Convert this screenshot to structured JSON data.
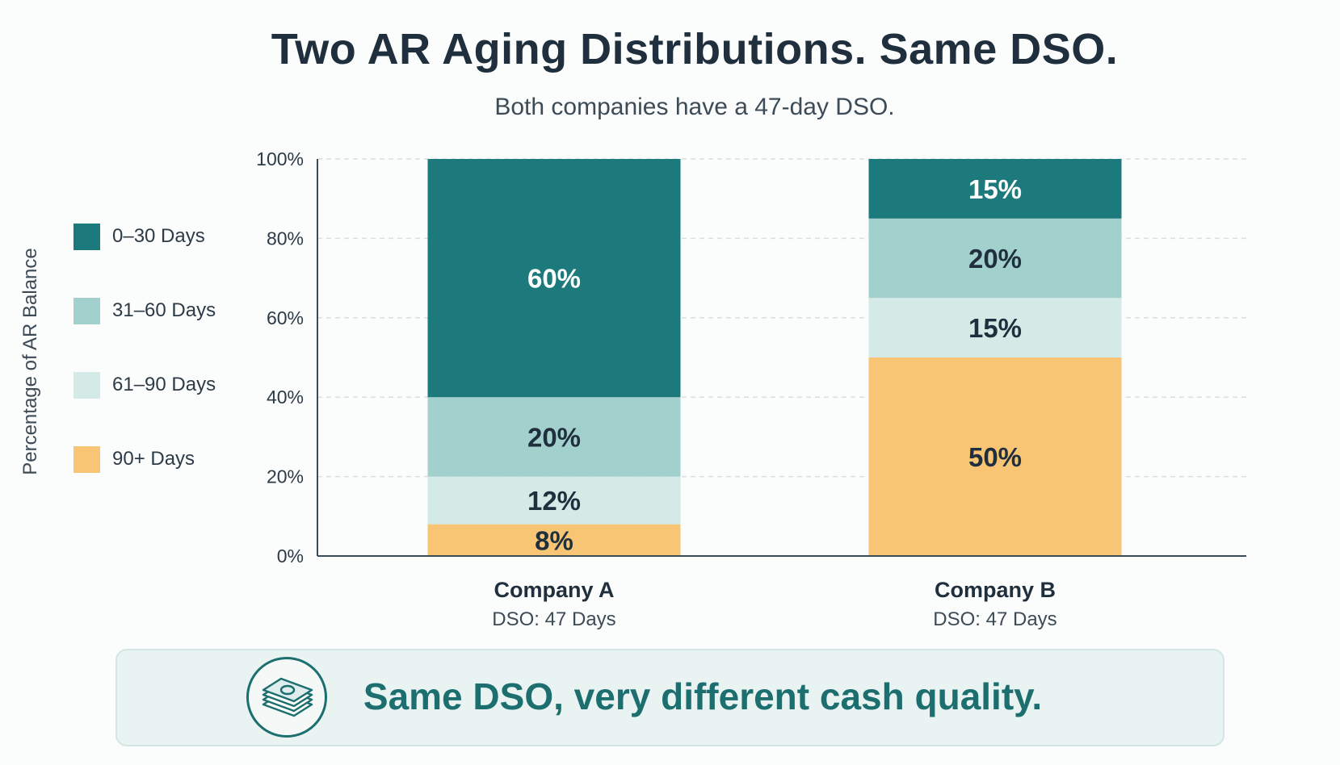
{
  "title": "Two AR Aging Distributions. Same DSO.",
  "subtitle": "Both companies have a 47-day DSO.",
  "callout": {
    "text": "Same DSO, very different cash quality.",
    "icon": "money-stack-icon"
  },
  "colors": {
    "0-30": "#1d7a7c",
    "31-60": "#a2d1cd",
    "61-90": "#d3eae6",
    "90+": "#f7c574"
  },
  "chart_data": {
    "type": "bar",
    "stacked": true,
    "ylabel": "Percentage of AR Balance",
    "ylim": [
      0,
      100
    ],
    "yticks": [
      "0%",
      "20%",
      "40%",
      "60%",
      "80%",
      "100%"
    ],
    "grid": true,
    "legend_position": "left",
    "categories": [
      "Company A",
      "Company B"
    ],
    "category_sublabels": [
      "DSO: 47 Days",
      "DSO: 47 Days"
    ],
    "series": [
      {
        "name": "90+ Days",
        "key": "90+",
        "values": [
          8,
          50
        ],
        "labels": [
          "8%",
          "50%"
        ]
      },
      {
        "name": "61–90 Days",
        "key": "61-90",
        "values": [
          12,
          15
        ],
        "labels": [
          "12%",
          "15%"
        ]
      },
      {
        "name": "31–60 Days",
        "key": "31-60",
        "values": [
          20,
          20
        ],
        "labels": [
          "20%",
          "20%"
        ]
      },
      {
        "name": "0–30 Days",
        "key": "0-30",
        "values": [
          60,
          15
        ],
        "labels": [
          "60%",
          "15%"
        ]
      }
    ]
  }
}
